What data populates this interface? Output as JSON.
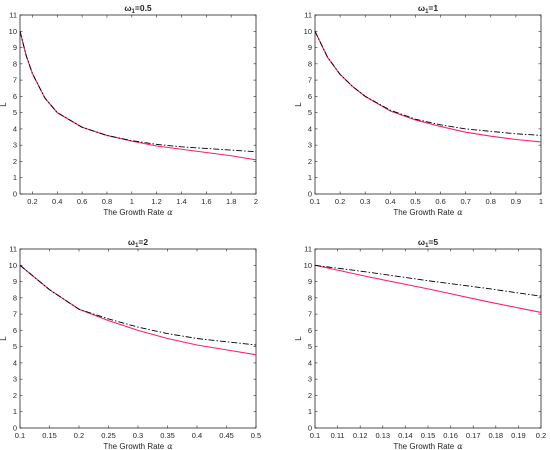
{
  "figure": {
    "xlabel": "The Growth Rate",
    "xlabel_symbol": "α",
    "ylabel": "L"
  },
  "series_styles": {
    "pink_solid": {
      "color": "#ff1f6e",
      "dash": "none"
    },
    "black_dashdot": {
      "color": "#000000",
      "dash": "6,2,1.5,2"
    }
  },
  "chart_data": [
    {
      "type": "line",
      "title_main": "ω",
      "title_sub": "1",
      "title_rest": "=0.5",
      "xlim": [
        0.1,
        2
      ],
      "ylim": [
        0,
        11
      ],
      "xticks": [
        0.2,
        0.4,
        0.6,
        0.8,
        1,
        1.2,
        1.4,
        1.6,
        1.8,
        2
      ],
      "xtick_labels": [
        "0.2",
        "0.4",
        "0.6",
        "0.8",
        "1",
        "1.2",
        "1.4",
        "1.6",
        "1.8",
        "2"
      ],
      "yticks": [
        0,
        1,
        2,
        3,
        4,
        5,
        6,
        7,
        8,
        9,
        10,
        11
      ],
      "ytick_labels": [
        "0",
        "1",
        "2",
        "3",
        "4",
        "5",
        "6",
        "7",
        "8",
        "9",
        "10",
        "11"
      ],
      "series": [
        {
          "style": "pink_solid",
          "x": [
            0.1,
            0.15,
            0.2,
            0.3,
            0.4,
            0.6,
            0.8,
            1.0,
            1.2,
            1.4,
            1.6,
            1.8,
            2.0
          ],
          "y": [
            10.0,
            8.5,
            7.4,
            5.9,
            5.0,
            4.1,
            3.6,
            3.25,
            2.95,
            2.75,
            2.55,
            2.35,
            2.1
          ]
        },
        {
          "style": "black_dashdot",
          "x": [
            0.1,
            0.15,
            0.2,
            0.3,
            0.4,
            0.6,
            0.8,
            1.0,
            1.2,
            1.4,
            1.6,
            1.8,
            2.0
          ],
          "y": [
            10.0,
            8.5,
            7.4,
            5.9,
            5.0,
            4.1,
            3.6,
            3.28,
            3.05,
            2.9,
            2.8,
            2.7,
            2.6
          ]
        }
      ]
    },
    {
      "type": "line",
      "title_main": "ω",
      "title_sub": "1",
      "title_rest": "=1",
      "xlim": [
        0.1,
        1
      ],
      "ylim": [
        0,
        11
      ],
      "xticks": [
        0.1,
        0.2,
        0.3,
        0.4,
        0.5,
        0.6,
        0.7,
        0.8,
        0.9,
        1
      ],
      "xtick_labels": [
        "0.1",
        "0.2",
        "0.3",
        "0.4",
        "0.5",
        "0.6",
        "0.7",
        "0.8",
        "0.9",
        "1"
      ],
      "yticks": [
        0,
        1,
        2,
        3,
        4,
        5,
        6,
        7,
        8,
        9,
        10,
        11
      ],
      "ytick_labels": [
        "0",
        "1",
        "2",
        "3",
        "4",
        "5",
        "6",
        "7",
        "8",
        "9",
        "10",
        "11"
      ],
      "series": [
        {
          "style": "pink_solid",
          "x": [
            0.1,
            0.15,
            0.2,
            0.25,
            0.3,
            0.4,
            0.5,
            0.6,
            0.7,
            0.8,
            0.9,
            1.0
          ],
          "y": [
            10.0,
            8.4,
            7.35,
            6.6,
            6.0,
            5.1,
            4.55,
            4.15,
            3.8,
            3.55,
            3.35,
            3.2
          ]
        },
        {
          "style": "black_dashdot",
          "x": [
            0.1,
            0.15,
            0.2,
            0.25,
            0.3,
            0.4,
            0.5,
            0.6,
            0.7,
            0.8,
            0.9,
            1.0
          ],
          "y": [
            10.0,
            8.4,
            7.35,
            6.6,
            6.0,
            5.15,
            4.6,
            4.25,
            4.0,
            3.85,
            3.7,
            3.6
          ]
        }
      ]
    },
    {
      "type": "line",
      "title_main": "ω",
      "title_sub": "1",
      "title_rest": "=2",
      "xlim": [
        0.1,
        0.5
      ],
      "ylim": [
        0,
        11
      ],
      "xticks": [
        0.1,
        0.15,
        0.2,
        0.25,
        0.3,
        0.35,
        0.4,
        0.45,
        0.5
      ],
      "xtick_labels": [
        "0.1",
        "0.15",
        "0.2",
        "0.25",
        "0.3",
        "0.35",
        "0.4",
        "0.45",
        "0.5"
      ],
      "yticks": [
        0,
        1,
        2,
        3,
        4,
        5,
        6,
        7,
        8,
        9,
        10,
        11
      ],
      "ytick_labels": [
        "0",
        "1",
        "2",
        "3",
        "4",
        "5",
        "6",
        "7",
        "8",
        "9",
        "10",
        "11"
      ],
      "series": [
        {
          "style": "pink_solid",
          "x": [
            0.1,
            0.15,
            0.2,
            0.25,
            0.3,
            0.35,
            0.4,
            0.45,
            0.5
          ],
          "y": [
            10.0,
            8.5,
            7.3,
            6.6,
            6.0,
            5.5,
            5.1,
            4.8,
            4.5
          ]
        },
        {
          "style": "black_dashdot",
          "x": [
            0.1,
            0.15,
            0.2,
            0.25,
            0.3,
            0.35,
            0.4,
            0.45,
            0.5
          ],
          "y": [
            10.0,
            8.5,
            7.3,
            6.7,
            6.2,
            5.8,
            5.5,
            5.3,
            5.1
          ]
        }
      ]
    },
    {
      "type": "line",
      "title_main": "ω",
      "title_sub": "1",
      "title_rest": "=5",
      "xlim": [
        0.1,
        0.2
      ],
      "ylim": [
        0,
        11
      ],
      "xticks": [
        0.1,
        0.11,
        0.12,
        0.13,
        0.14,
        0.15,
        0.16,
        0.17,
        0.18,
        0.19,
        0.2
      ],
      "xtick_labels": [
        "0.1",
        "0.11",
        "0.12",
        "0.13",
        "0.14",
        "0.15",
        "0.16",
        "0.17",
        "0.18",
        "0.19",
        "0.2"
      ],
      "yticks": [
        0,
        1,
        2,
        3,
        4,
        5,
        6,
        7,
        8,
        9,
        10,
        11
      ],
      "ytick_labels": [
        "0",
        "1",
        "2",
        "3",
        "4",
        "5",
        "6",
        "7",
        "8",
        "9",
        "10",
        "11"
      ],
      "series": [
        {
          "style": "pink_solid",
          "x": [
            0.1,
            0.125,
            0.15,
            0.175,
            0.2
          ],
          "y": [
            10.0,
            9.25,
            8.55,
            7.8,
            7.1
          ]
        },
        {
          "style": "black_dashdot",
          "x": [
            0.1,
            0.125,
            0.15,
            0.175,
            0.2
          ],
          "y": [
            10.0,
            9.55,
            9.05,
            8.6,
            8.1
          ]
        }
      ]
    }
  ]
}
